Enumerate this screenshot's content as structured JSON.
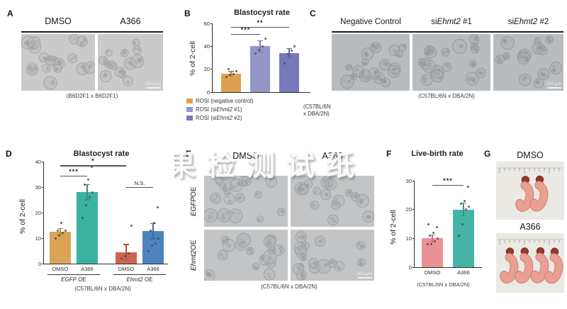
{
  "watermark": {
    "text": "果检测试纸"
  },
  "panels": {
    "a": {
      "label": "A",
      "columns": [
        "DMSO",
        "A366"
      ],
      "caption": "(B6D2F1 x B6D2F1)",
      "scale_bar": "100 μm"
    },
    "b": {
      "label": "B",
      "legend": [
        {
          "label": "ROSI (negative control)",
          "color": "#dfa14f"
        },
        {
          "label": "ROSI (si*Ehmt2* #1)",
          "color": "#9496c8"
        },
        {
          "label": "ROSI (si*Ehmt2* #2)",
          "color": "#7779ba"
        }
      ],
      "strain_line1": "(C57BL/6N",
      "strain_line2": "x DBA/2N)"
    },
    "c": {
      "label": "C",
      "columns": [
        "Negative Control",
        "si*Ehmt2* #1",
        "si*Ehmt2* #2"
      ],
      "caption": "(C57BL/6N x DBA/2N)",
      "scale_bar": "100 μm"
    },
    "d": {
      "label": "D"
    },
    "e": {
      "label": "E",
      "columns": [
        "DMSO",
        "A366"
      ],
      "rows": [
        "*EGFP* OE",
        "*Ehmt2* OE"
      ],
      "caption": "(C57BL/6N x DBA/2N)",
      "scale_bar": "100 μm"
    },
    "f": {
      "label": "F"
    },
    "g": {
      "label": "G",
      "images": [
        {
          "label": "DMSO",
          "pup_count": 2
        },
        {
          "label": "A366",
          "pup_count": 4
        }
      ]
    }
  },
  "chart_data": [
    {
      "id": "B",
      "type": "bar",
      "title": "Blastocyst rate",
      "ylabel": "% of 2-cell",
      "ylim": [
        0,
        60
      ],
      "yticks": [
        0,
        20,
        40,
        60
      ],
      "categories": [
        "ROSI (negative control)",
        "ROSI (siEhmt2 #1)",
        "ROSI (siEhmt2 #2)"
      ],
      "values": [
        16,
        40,
        34
      ],
      "errors": [
        2,
        5,
        4
      ],
      "points": [
        [
          13,
          15,
          16,
          18,
          20
        ],
        [
          34,
          37,
          40,
          47
        ],
        [
          25,
          33,
          36,
          40
        ]
      ],
      "colors": [
        "#dfa14f",
        "#9496c8",
        "#7779ba"
      ],
      "significance": [
        {
          "from": 0,
          "to": 1,
          "label": "***",
          "y": 51
        },
        {
          "from": 0,
          "to": 2,
          "label": "**",
          "y": 57
        }
      ],
      "caption": "(C57BL/6N x DBA/2N)",
      "legend_position": "bottom-left"
    },
    {
      "id": "D",
      "type": "bar",
      "title": "Blastocyst rate",
      "ylabel": "% of 2-cell",
      "ylim": [
        0,
        40
      ],
      "yticks": [
        0,
        10,
        20,
        30,
        40
      ],
      "xticklabels": [
        "DMSO",
        "A366",
        "DMSO",
        "A366"
      ],
      "groups": [
        {
          "label": "*EGFP* OE",
          "from": 0,
          "to": 1
        },
        {
          "label": "*Ehmt2* OE",
          "from": 2,
          "to": 3
        }
      ],
      "values": [
        12.5,
        28,
        4.5,
        12.7
      ],
      "errors": [
        1.2,
        3,
        3,
        3
      ],
      "points": [
        [
          10,
          11,
          12,
          13,
          13,
          16
        ],
        [
          18,
          23,
          26,
          28,
          31,
          33,
          38
        ],
        [
          2,
          3,
          4,
          15
        ],
        [
          5,
          7,
          8,
          10,
          13,
          16,
          22
        ]
      ],
      "colors": [
        "#d9a455",
        "#3cb2a2",
        "#ce6450",
        "#4d82c1"
      ],
      "significance": [
        {
          "from": 0,
          "to": 1,
          "label": "***",
          "y": 34.5
        },
        {
          "from": 0,
          "to": 2,
          "label": "*",
          "y": 38.5
        },
        {
          "from": 2,
          "to": 3,
          "label": "N.S.",
          "y": 30
        }
      ],
      "caption": "(C57BL/6N x DBA/2N)"
    },
    {
      "id": "F",
      "type": "bar",
      "title": "Live-birth rate",
      "ylabel": "% of 2-cell",
      "ylim": [
        0,
        30
      ],
      "yticks": [
        0,
        10,
        20,
        30
      ],
      "xticklabels": [
        "DMSO",
        "A366"
      ],
      "values": [
        10,
        20
      ],
      "errors": [
        1.2,
        2.2
      ],
      "points": [
        [
          8,
          8,
          9,
          10,
          11,
          12,
          14,
          15
        ],
        [
          11,
          15,
          20,
          21,
          22,
          23,
          28
        ]
      ],
      "colors": [
        "#ec9098",
        "#45b4a5"
      ],
      "significance": [
        {
          "from": 0,
          "to": 1,
          "label": "***",
          "y": 28.5
        }
      ],
      "caption": "(C57BL/6N x DBA/2N)"
    }
  ]
}
